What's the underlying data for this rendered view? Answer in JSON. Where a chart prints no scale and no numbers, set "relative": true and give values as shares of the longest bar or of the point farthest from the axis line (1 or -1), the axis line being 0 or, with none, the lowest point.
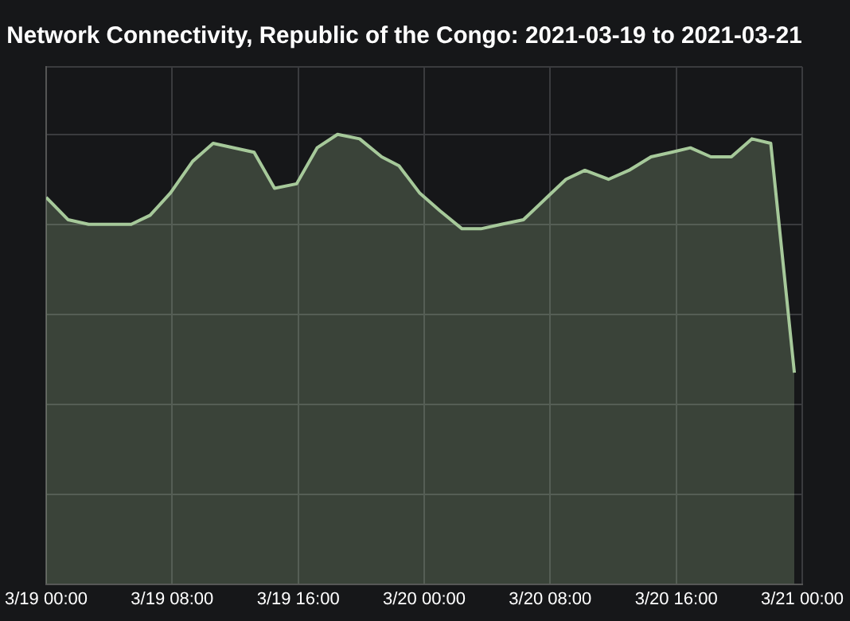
{
  "chart_data": {
    "type": "area",
    "title": "Network Connectivity, Republic of the Congo: 2021-03-19 to 2021-03-21",
    "relative": true,
    "grid": true,
    "legend": false,
    "tick_labels": "x",
    "x": [
      "2021-03-19T00:00",
      "2021-03-19T01:24",
      "2021-03-19T02:42",
      "2021-03-19T03:54",
      "2021-03-19T05:24",
      "2021-03-19T06:36",
      "2021-03-19T07:54",
      "2021-03-19T09:18",
      "2021-03-19T10:36",
      "2021-03-19T13:12",
      "2021-03-19T14:30",
      "2021-03-19T15:54",
      "2021-03-19T17:12",
      "2021-03-19T18:30",
      "2021-03-19T19:54",
      "2021-03-19T21:18",
      "2021-03-19T22:24",
      "2021-03-19T23:42",
      "2021-03-20T01:00",
      "2021-03-20T02:24",
      "2021-03-20T03:36",
      "2021-03-20T04:54",
      "2021-03-20T06:18",
      "2021-03-20T07:48",
      "2021-03-20T09:00",
      "2021-03-20T10:12",
      "2021-03-20T11:42",
      "2021-03-20T13:00",
      "2021-03-20T14:24",
      "2021-03-20T15:42",
      "2021-03-20T16:54",
      "2021-03-20T18:12",
      "2021-03-20T19:30",
      "2021-03-20T20:48",
      "2021-03-20T22:00",
      "2021-03-20T23:30"
    ],
    "xlim": [
      "2021-03-19T00:00",
      "2021-03-21T00:00"
    ],
    "xticks": [
      {
        "value": "2021-03-19T00:00",
        "label": "3/19 00:00"
      },
      {
        "value": "2021-03-19T08:00",
        "label": "3/19 08:00"
      },
      {
        "value": "2021-03-19T16:00",
        "label": "3/19 16:00"
      },
      {
        "value": "2021-03-20T00:00",
        "label": "3/20 00:00"
      },
      {
        "value": "2021-03-20T08:00",
        "label": "3/20 08:00"
      },
      {
        "value": "2021-03-20T16:00",
        "label": "3/20 16:00"
      },
      {
        "value": "2021-03-21T00:00",
        "label": "3/21 00:00"
      }
    ],
    "series": [
      {
        "color": "#a6c99a",
        "values": [
          0.86,
          0.81,
          0.8,
          0.8,
          0.8,
          0.82,
          0.87,
          0.94,
          0.98,
          0.96,
          0.88,
          0.89,
          0.97,
          1,
          0.99,
          0.95,
          0.93,
          0.87,
          0.83,
          0.79,
          0.79,
          0.8,
          0.81,
          0.86,
          0.9,
          0.92,
          0.9,
          0.92,
          0.95,
          0.96,
          0.97,
          0.95,
          0.95,
          0.99,
          0.98,
          0.47
        ]
      }
    ]
  }
}
